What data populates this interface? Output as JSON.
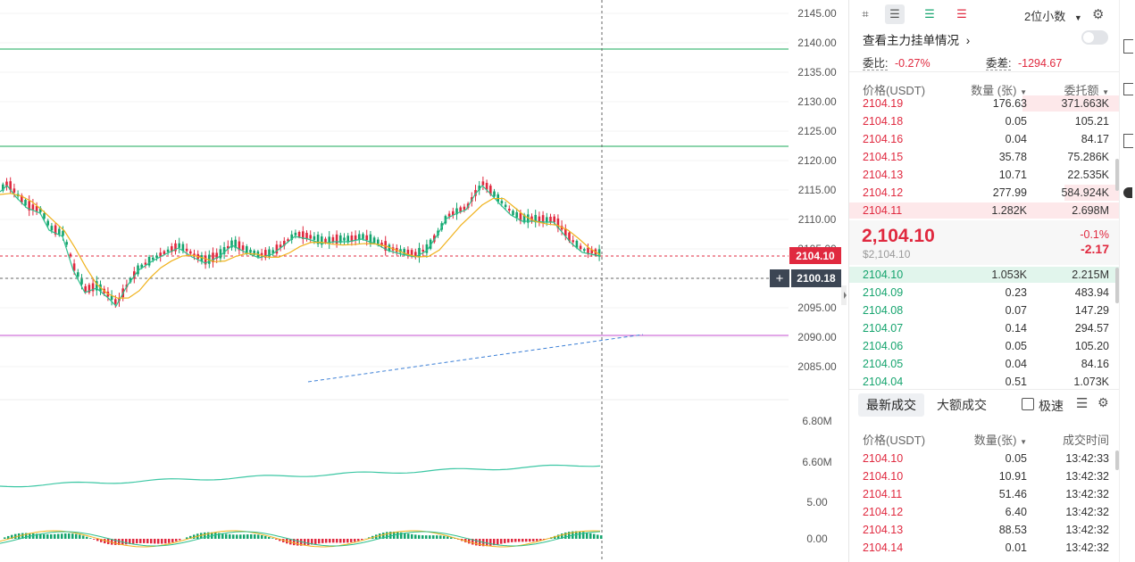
{
  "price_axis": [
    "2145.00",
    "2140.00",
    "2135.00",
    "2130.00",
    "2125.00",
    "2120.00",
    "2115.00",
    "2110.00",
    "2105.00",
    "2100.00",
    "2095.00",
    "2090.00",
    "2085.00"
  ],
  "price_tags": {
    "last": "2104.10",
    "cursor": "2100.18"
  },
  "vol_axis": [
    "6.80M",
    "6.60M"
  ],
  "macd_axis": [
    "5.00",
    "0.00"
  ],
  "toolbar": {
    "precision": "2位小数"
  },
  "depth": {
    "link_label": "查看主力挂单情况",
    "ratio_label": "委比:",
    "ratio_value": "-0.27%",
    "diff_label": "委差:",
    "diff_value": "-1294.67"
  },
  "orderbook": {
    "headers": {
      "price": "价格(USDT)",
      "qty": "数量 (张)",
      "total": "委托额"
    },
    "asks": [
      {
        "price": "2104.19",
        "qty": "176.63",
        "total": "371.663K",
        "depth": 0.42
      },
      {
        "price": "2104.18",
        "qty": "0.05",
        "total": "105.21",
        "depth": 0
      },
      {
        "price": "2104.16",
        "qty": "0.04",
        "total": "84.17",
        "depth": 0
      },
      {
        "price": "2104.15",
        "qty": "35.78",
        "total": "75.286K",
        "depth": 0
      },
      {
        "price": "2104.13",
        "qty": "10.71",
        "total": "22.535K",
        "depth": 0
      },
      {
        "price": "2104.12",
        "qty": "277.99",
        "total": "584.924K",
        "depth": 0.24
      },
      {
        "price": "2104.11",
        "qty": "1.282K",
        "total": "2.698M",
        "depth": 1
      }
    ],
    "mid": {
      "price": "2,104.10",
      "usd": "$2,104.10",
      "pct": "-0.1%",
      "change": "-2.17"
    },
    "bids": [
      {
        "price": "2104.10",
        "qty": "1.053K",
        "total": "2.215M",
        "depth": 1
      },
      {
        "price": "2104.09",
        "qty": "0.23",
        "total": "483.94",
        "depth": 0
      },
      {
        "price": "2104.08",
        "qty": "0.07",
        "total": "147.29",
        "depth": 0
      },
      {
        "price": "2104.07",
        "qty": "0.14",
        "total": "294.57",
        "depth": 0
      },
      {
        "price": "2104.06",
        "qty": "0.05",
        "total": "105.20",
        "depth": 0
      },
      {
        "price": "2104.05",
        "qty": "0.04",
        "total": "84.16",
        "depth": 0
      },
      {
        "price": "2104.04",
        "qty": "0.51",
        "total": "1.073K",
        "depth": 0
      }
    ]
  },
  "trades": {
    "tabs": {
      "latest": "最新成交",
      "large": "大额成交"
    },
    "fast_label": "极速",
    "headers": {
      "price": "价格(USDT)",
      "qty": "数量(张)",
      "time": "成交时间"
    },
    "rows": [
      {
        "price": "2104.10",
        "qty": "0.05",
        "time": "13:42:33"
      },
      {
        "price": "2104.10",
        "qty": "10.91",
        "time": "13:42:32"
      },
      {
        "price": "2104.11",
        "qty": "51.46",
        "time": "13:42:32"
      },
      {
        "price": "2104.12",
        "qty": "6.40",
        "time": "13:42:32"
      },
      {
        "price": "2104.13",
        "qty": "88.53",
        "time": "13:42:32"
      },
      {
        "price": "2104.14",
        "qty": "0.01",
        "time": "13:42:32"
      }
    ]
  },
  "colors": {
    "up": "#15a46e",
    "down": "#e0293f",
    "ma_yellow": "#f0b21c",
    "ma_green": "#2bbf8b",
    "vol_line": "#3cc7a4"
  }
}
